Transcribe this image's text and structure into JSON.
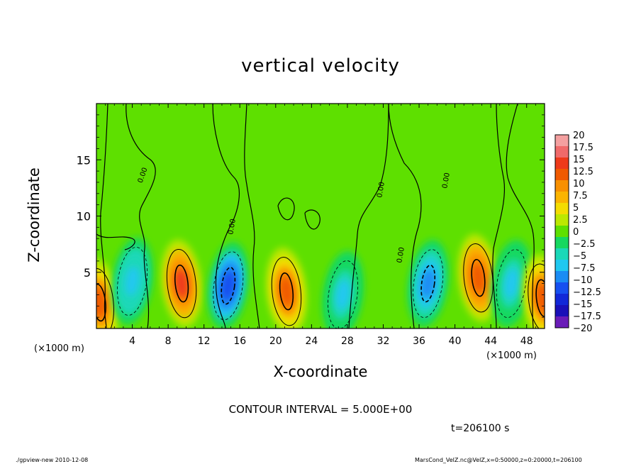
{
  "chart_data": {
    "type": "heatmap",
    "title": "vertical velocity",
    "xlabel": "X-coordinate",
    "ylabel": "Z-coordinate",
    "x_unit": "(×1000 m)",
    "z_unit": "(×1000 m)",
    "xlim": [
      0,
      50
    ],
    "ylim": [
      0,
      20
    ],
    "x_ticks": [
      4,
      8,
      12,
      16,
      20,
      24,
      28,
      32,
      36,
      40,
      44,
      48
    ],
    "y_ticks": [
      5,
      10,
      15
    ],
    "contour_interval_text": "CONTOUR INTERVAL = 5.000E+00",
    "contour_line_labels": [
      "0.00",
      "0.00",
      "0.00",
      "0.00",
      "0.00"
    ],
    "colorbar": {
      "labels": [
        "20",
        "17.5",
        "15",
        "12.5",
        "10",
        "7.5",
        "5",
        "2.5",
        "0",
        "−2.5",
        "−5",
        "−7.5",
        "−10",
        "−12.5",
        "−15",
        "−17.5",
        "−20"
      ],
      "colors": [
        "#f4a0a0",
        "#f06a6a",
        "#ee3a1a",
        "#f05a00",
        "#f89000",
        "#fbb400",
        "#f4dc00",
        "#bce800",
        "#5ee000",
        "#16d860",
        "#1ad8b8",
        "#20c8f0",
        "#1a8cf4",
        "#1650f0",
        "#1228d8",
        "#1a10b8",
        "#6a1cb8"
      ],
      "range": [
        -20,
        20
      ]
    },
    "cells": [
      {
        "x": 0.3,
        "z": 2.3,
        "w": -3,
        "peak": 12
      },
      {
        "x": 4.0,
        "z": 4.2,
        "w": 0,
        "peak": -8
      },
      {
        "x": 9.5,
        "z": 4.0,
        "w": 0,
        "peak": 14
      },
      {
        "x": 14.7,
        "z": 3.8,
        "w": 0,
        "peak": -13
      },
      {
        "x": 21.2,
        "z": 3.3,
        "w": 0,
        "peak": 12
      },
      {
        "x": 27.5,
        "z": 3.0,
        "w": 0,
        "peak": -7
      },
      {
        "x": 37.0,
        "z": 4.0,
        "w": 0,
        "peak": -11
      },
      {
        "x": 42.6,
        "z": 4.5,
        "w": 0,
        "peak": 13
      },
      {
        "x": 46.3,
        "z": 4.0,
        "w": 0,
        "peak": -7
      },
      {
        "x": 49.8,
        "z": 2.7,
        "w": 0,
        "peak": 12
      }
    ]
  },
  "footer": {
    "time": "t=206100 s",
    "left": "./gpview-new   2010-12-08",
    "right": "MarsCond_VelZ.nc@VelZ,x=0:50000,z=0:20000,t=206100"
  }
}
